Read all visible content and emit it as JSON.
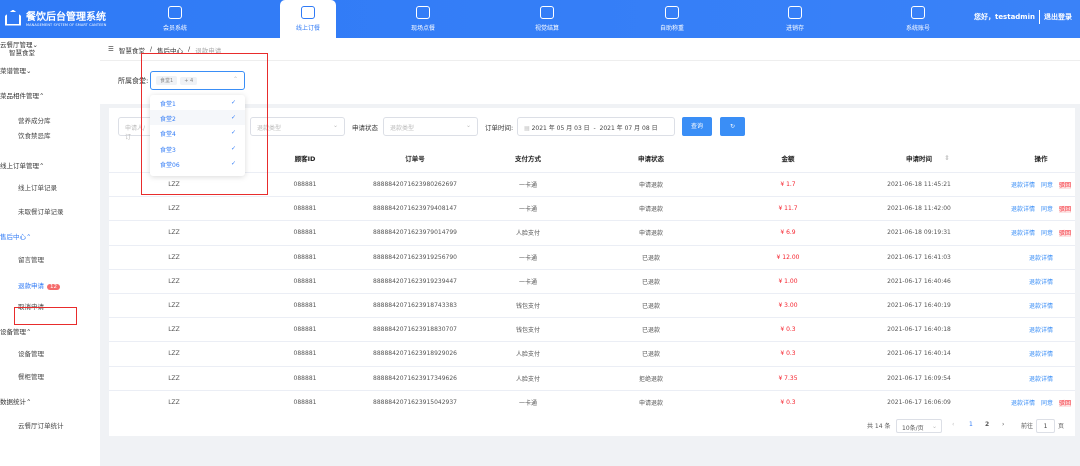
{
  "header": {
    "title": "餐饮后台管理系统",
    "subtitle": "MANAGEMENT SYSTEM OF SMART CANTEEN",
    "logo_text": "智慧食堂",
    "nav": [
      {
        "label": "会员系统",
        "icon": "diamond-icon"
      },
      {
        "label": "线上订餐",
        "icon": "shop-icon",
        "active": true
      },
      {
        "label": "现场点餐",
        "icon": "dish-icon"
      },
      {
        "label": "视觉结算",
        "icon": "eye-scan-icon"
      },
      {
        "label": "自助称重",
        "icon": "scale-icon"
      },
      {
        "label": "进销存",
        "icon": "warehouse-icon"
      },
      {
        "label": "系统账号",
        "icon": "users-icon"
      }
    ],
    "greeting": "您好，testadmin",
    "logout": "退出登录"
  },
  "sidebar": {
    "title": "智慧食堂",
    "items": [
      {
        "label": "云餐厅管理",
        "type": "group"
      },
      {
        "label": "菜谱管理",
        "type": "group"
      },
      {
        "label": "菜品相件管理",
        "type": "group",
        "open": true
      },
      {
        "label": "营养成分库",
        "type": "sub"
      },
      {
        "label": "饮食禁忌库",
        "type": "sub"
      },
      {
        "label": "线上订单管理",
        "type": "group",
        "open": true
      },
      {
        "label": "线上订单记录",
        "type": "sub"
      },
      {
        "label": "未取餐订单记录",
        "type": "sub"
      },
      {
        "label": "售后中心",
        "type": "group",
        "open": true,
        "active": true
      },
      {
        "label": "留言管理",
        "type": "sub"
      },
      {
        "label": "退款申请",
        "type": "sub",
        "active": true,
        "badge": "12"
      },
      {
        "label": "取消申请",
        "type": "sub"
      },
      {
        "label": "设备管理",
        "type": "group",
        "open": true
      },
      {
        "label": "设备管理",
        "type": "sub"
      },
      {
        "label": "餐柜管理",
        "type": "sub"
      },
      {
        "label": "数据统计",
        "type": "group",
        "open": true
      },
      {
        "label": "云餐厅订单统计",
        "type": "sub"
      }
    ]
  },
  "breadcrumb": [
    "智慧食堂",
    "售后中心",
    "退款申请"
  ],
  "canteen_filter": {
    "label": "所属食堂:",
    "tags": [
      "食堂1",
      "+ 4"
    ],
    "options": [
      {
        "label": "食堂1",
        "checked": true
      },
      {
        "label": "食堂2",
        "checked": true
      },
      {
        "label": "食堂4",
        "checked": true
      },
      {
        "label": "食堂3",
        "checked": true
      },
      {
        "label": "食堂06",
        "checked": true
      }
    ]
  },
  "filters": {
    "applicant_placeholder": "申请人/订",
    "refund_type_placeholder": "退款类型",
    "status_label": "申请状态",
    "status_placeholder": "退款类型",
    "time_label": "订单时间:",
    "date_start": "2021 年 05 月 03 日",
    "date_sep": "-",
    "date_end": "2021 年 07 月 08 日",
    "query": "查询",
    "refresh_icon": "refresh-icon"
  },
  "table": {
    "headers": [
      "顾客ID",
      "订单号",
      "支付方式",
      "申请状态",
      "金额",
      "申请时间",
      "操作"
    ],
    "actions": {
      "detail": "退款详情",
      "agree": "同意",
      "reject": "驳回"
    },
    "rows": [
      {
        "applicant": "LZZ",
        "id": "088881",
        "order": "888884207162398026269​7",
        "pay": "一卡通",
        "status": "申请退款",
        "amount": "¥ 1.7",
        "time": "2021-06-18 11:45:21",
        "full": true
      },
      {
        "applicant": "LZZ",
        "id": "088881",
        "order": "8888842071623979408147",
        "pay": "一卡通",
        "status": "申请退款",
        "amount": "¥ 11.7",
        "time": "2021-06-18 11:42:00",
        "full": true
      },
      {
        "applicant": "LZZ",
        "id": "088881",
        "order": "8888842071623979014799",
        "pay": "人脸支付",
        "status": "申请退款",
        "amount": "¥ 6.9",
        "time": "2021-06-18 09:19:31",
        "full": true
      },
      {
        "applicant": "LZZ",
        "id": "088881",
        "order": "8888842071623919256790",
        "pay": "一卡通",
        "status": "已退款",
        "amount": "¥ 12.00",
        "time": "2021-06-17 16:41:03",
        "full": false
      },
      {
        "applicant": "LZZ",
        "id": "088881",
        "order": "8888842071623919239447",
        "pay": "一卡通",
        "status": "已退款",
        "amount": "¥ 1.00",
        "time": "2021-06-17 16:40:46",
        "full": false
      },
      {
        "applicant": "LZZ",
        "id": "088881",
        "order": "8888842071623918743383",
        "pay": "钱包支付",
        "status": "已退款",
        "amount": "¥ 3.00",
        "time": "2021-06-17 16:40:19",
        "full": false
      },
      {
        "applicant": "LZZ",
        "id": "088881",
        "order": "8888842071623918830707",
        "pay": "钱包支付",
        "status": "已退款",
        "amount": "¥ 0.3",
        "time": "2021-06-17 16:40:18",
        "full": false
      },
      {
        "applicant": "LZZ",
        "id": "088881",
        "order": "8888842071623918929026",
        "pay": "人脸支付",
        "status": "已退款",
        "amount": "¥ 0.3",
        "time": "2021-06-17 16:40:14",
        "full": false
      },
      {
        "applicant": "LZZ",
        "id": "088881",
        "order": "8888842071623917349626",
        "pay": "人脸支付",
        "status": "拒绝退款",
        "amount": "¥ 7.35",
        "time": "2021-06-17 16:09:54",
        "full": false
      },
      {
        "applicant": "LZZ",
        "id": "088881",
        "order": "8888842071623915042937",
        "pay": "一卡通",
        "status": "申请退款",
        "amount": "¥ 0.3",
        "time": "2021-06-17 16:06:09",
        "full": true
      }
    ]
  },
  "pagination": {
    "total": "共 14 条",
    "page_size": "10条/页",
    "pages": [
      "1",
      "2"
    ],
    "current": "1",
    "goto_label": "前往",
    "goto_value": "1",
    "page_unit": "页"
  },
  "colors": {
    "primary": "#2f7af6",
    "danger": "#f5222d",
    "highlight": "#e82c2c"
  }
}
